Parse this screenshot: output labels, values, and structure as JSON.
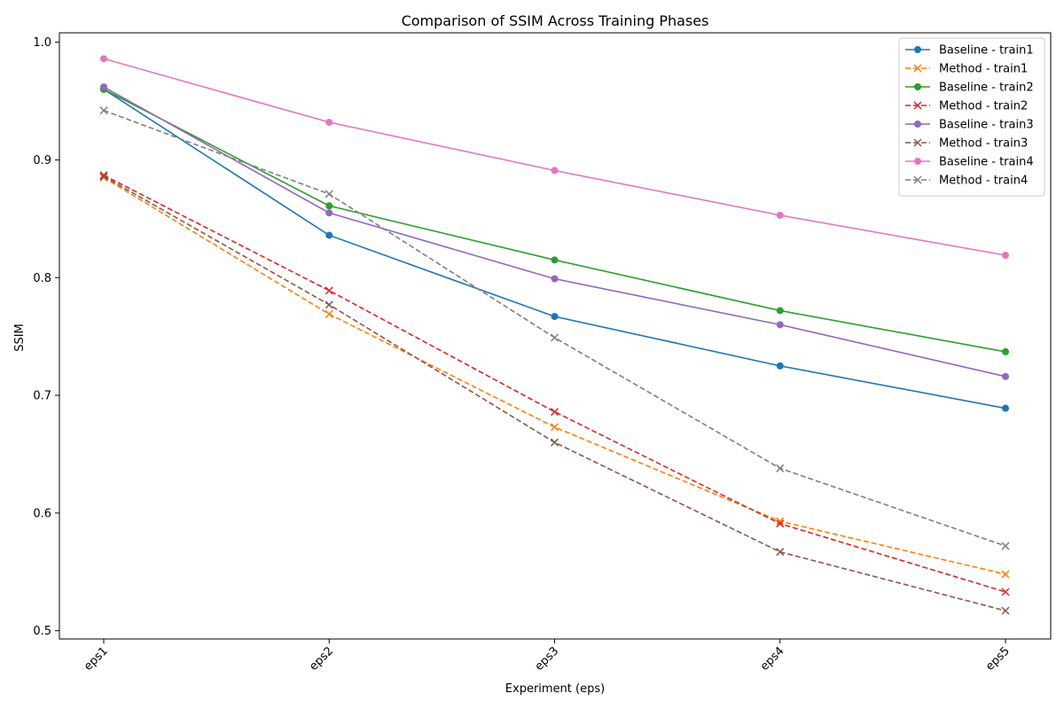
{
  "chart_data": {
    "type": "line",
    "title": "Comparison of SSIM Across Training Phases",
    "xlabel": "Experiment (eps)",
    "ylabel": "SSIM",
    "categories": [
      "eps1",
      "eps2",
      "eps3",
      "eps4",
      "eps5"
    ],
    "ylim": [
      0.493,
      1.008
    ],
    "yticks": [
      "0.5",
      "0.6",
      "0.7",
      "0.8",
      "0.9",
      "1.0"
    ],
    "grid": false,
    "legend_position": "top-right",
    "series": [
      {
        "name": "Baseline - train1",
        "color": "#1f77b4",
        "dashed": false,
        "marker": "circle",
        "values": [
          0.96,
          0.836,
          0.767,
          0.725,
          0.689
        ]
      },
      {
        "name": "Method - train1",
        "color": "#ff7f0e",
        "dashed": true,
        "marker": "x",
        "values": [
          0.885,
          0.769,
          0.673,
          0.593,
          0.548
        ]
      },
      {
        "name": "Baseline - train2",
        "color": "#2ca02c",
        "dashed": false,
        "marker": "circle",
        "values": [
          0.96,
          0.861,
          0.815,
          0.772,
          0.737
        ]
      },
      {
        "name": "Method - train2",
        "color": "#d62728",
        "dashed": true,
        "marker": "x",
        "values": [
          0.887,
          0.789,
          0.686,
          0.591,
          0.533
        ]
      },
      {
        "name": "Baseline - train3",
        "color": "#9467bd",
        "dashed": false,
        "marker": "circle",
        "values": [
          0.962,
          0.855,
          0.799,
          0.76,
          0.716
        ]
      },
      {
        "name": "Method - train3",
        "color": "#8c564b",
        "dashed": true,
        "marker": "x",
        "values": [
          0.886,
          0.777,
          0.66,
          0.567,
          0.517
        ]
      },
      {
        "name": "Baseline - train4",
        "color": "#e377c2",
        "dashed": false,
        "marker": "circle",
        "values": [
          0.986,
          0.932,
          0.891,
          0.853,
          0.819
        ]
      },
      {
        "name": "Method - train4",
        "color": "#7f7f7f",
        "dashed": true,
        "marker": "x",
        "values": [
          0.942,
          0.871,
          0.749,
          0.638,
          0.572
        ]
      }
    ]
  }
}
